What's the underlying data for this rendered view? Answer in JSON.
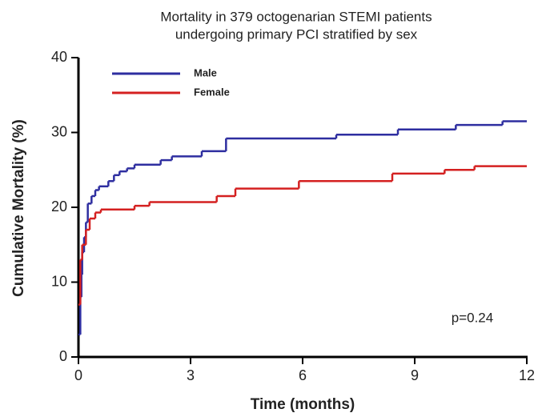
{
  "chart_data": {
    "type": "step",
    "title": [
      "Mortality in 379 octogenarian STEMI patients",
      "undergoing primary PCI stratified by sex"
    ],
    "x_label": "Time (months)",
    "y_label": "Cumulative Mortality (%)",
    "annotation": "p=0.24",
    "xlim": [
      0,
      12
    ],
    "ylim": [
      0,
      40
    ],
    "xticks": [
      0,
      3,
      6,
      9,
      12
    ],
    "yticks": [
      0,
      10,
      20,
      30,
      40
    ],
    "legend": "upper left",
    "series": [
      {
        "name": "Male",
        "color": "#2e2ea0",
        "x": [
          0,
          0.05,
          0.08,
          0.1,
          0.15,
          0.2,
          0.25,
          0.35,
          0.45,
          0.55,
          0.8,
          0.95,
          1.1,
          1.3,
          1.5,
          2.2,
          2.5,
          3.3,
          3.95,
          6.9,
          8.55,
          10.1,
          11.35,
          12
        ],
        "values": [
          3,
          8,
          11,
          14,
          16,
          18,
          20.5,
          21.5,
          22.3,
          22.8,
          23.5,
          24.3,
          24.8,
          25.2,
          25.7,
          26.3,
          26.8,
          27.5,
          29.2,
          29.7,
          30.4,
          31,
          31.5,
          31.5
        ]
      },
      {
        "name": "Female",
        "color": "#d42020",
        "x": [
          0,
          0.05,
          0.1,
          0.2,
          0.3,
          0.45,
          0.6,
          1.5,
          1.9,
          3.7,
          4.2,
          5.9,
          8.4,
          9.8,
          10.6,
          12
        ],
        "values": [
          7,
          13,
          15,
          17,
          18.5,
          19.3,
          19.7,
          20.2,
          20.7,
          21.5,
          22.5,
          23.5,
          24.5,
          25,
          25.5,
          25.5
        ]
      }
    ]
  }
}
